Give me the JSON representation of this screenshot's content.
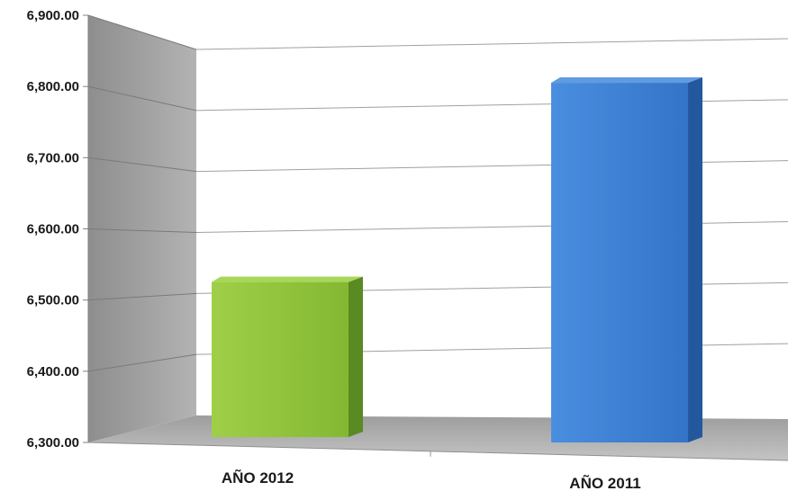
{
  "chart_data": {
    "type": "bar",
    "categories": [
      "AÑO 2012",
      "AÑO 2011"
    ],
    "values": [
      6480,
      6820
    ],
    "ylim": [
      6300,
      6900
    ],
    "yticks": [
      "6,300.00",
      "6,400.00",
      "6,500.00",
      "6,600.00",
      "6,700.00",
      "6,800.00",
      "6,900.00"
    ],
    "grid": true,
    "legend": "none",
    "colors": {
      "bars": [
        "#8bbf3a",
        "#3a7fd0"
      ],
      "bar_side": [
        "#5a8a22",
        "#24589e"
      ],
      "bar_top": [
        "#a8d656",
        "#5f9be0"
      ],
      "wall": "#a6a6a6",
      "floor": "#bfbfbf",
      "gridline": "#a0a0a0"
    }
  }
}
